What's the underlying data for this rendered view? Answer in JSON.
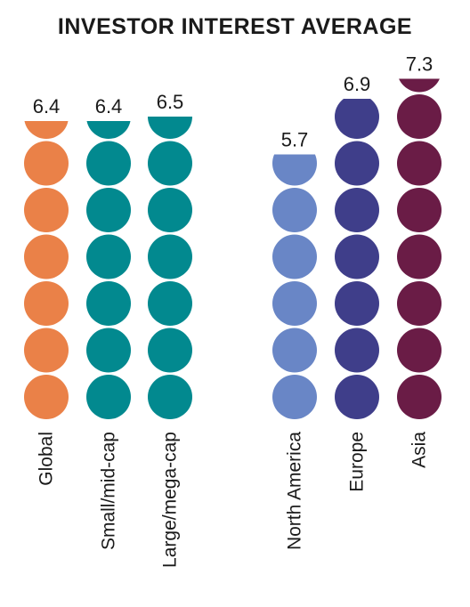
{
  "chart_data": {
    "type": "bar",
    "title": "INVESTOR INTEREST AVERAGE",
    "categories": [
      "Global",
      "Small/mid-cap",
      "Large/mega-cap",
      "North America",
      "Europe",
      "Asia"
    ],
    "values": [
      6.4,
      6.4,
      6.5,
      5.7,
      6.9,
      7.3
    ],
    "value_labels": [
      "6.4",
      "6.4",
      "6.5",
      "5.7",
      "6.9",
      "7.3"
    ],
    "colors": [
      "#ea8148",
      "#02898f",
      "#02898f",
      "#6986c6",
      "#3f3e8a",
      "#6a1c46"
    ],
    "unit_per_circle": 1,
    "legend": "none",
    "grid": false
  }
}
